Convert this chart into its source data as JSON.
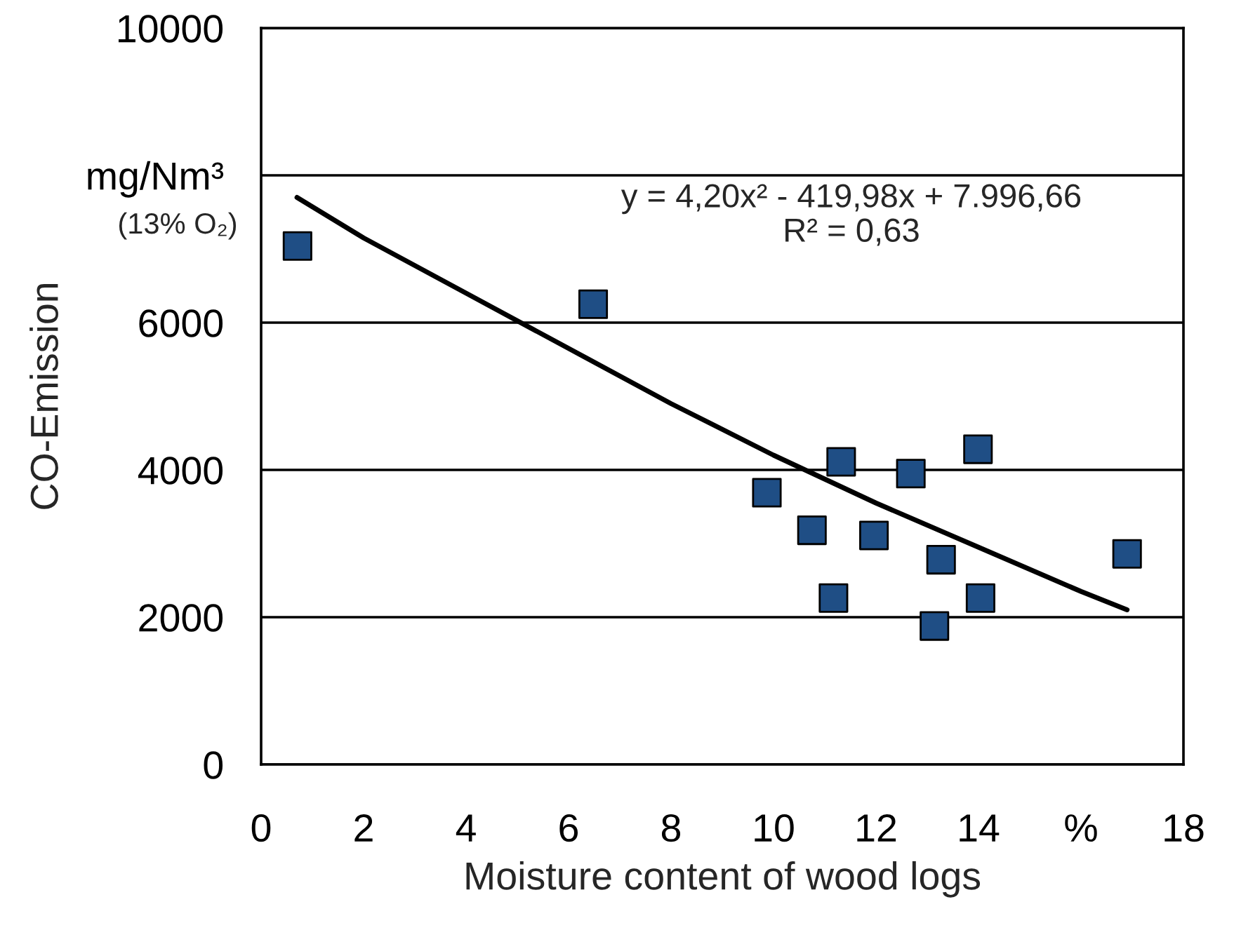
{
  "chart_data": {
    "type": "scatter",
    "xlabel": "Moisture content of wood logs",
    "ylabel": "CO-Emission",
    "annotations": [
      "(13% O₂)",
      "y = 4,20x² - 419,98x + 7.996,66\nR² = 0,63"
    ],
    "series": [
      {
        "color": "#1f4e85",
        "marker": "square",
        "x": [
          0.71,
          6.48,
          9.87,
          11.32,
          10.75,
          11.17,
          11.96,
          12.68,
          13.27,
          13.14,
          13.99,
          14.04,
          16.9
        ],
        "values": [
          7040,
          6250,
          3690,
          4110,
          3180,
          2260,
          3110,
          3950,
          2780,
          1880,
          4280,
          2260,
          2860
        ]
      },
      {
        "type": "line",
        "color": "#000000",
        "marker": "none",
        "x": [
          0.7,
          2,
          4,
          6,
          8,
          10,
          12,
          14,
          16,
          16.9
        ],
        "values": [
          7700,
          7150,
          6400,
          5650,
          4900,
          4200,
          3550,
          2950,
          2350,
          2100
        ]
      }
    ],
    "xlim": [
      0,
      18
    ],
    "xticks": [
      0,
      2,
      4,
      6,
      8,
      10,
      12,
      14,
      {
        "value": 16,
        "label": "%"
      },
      18
    ],
    "ylim": [
      0,
      10000
    ],
    "yticks": [
      0,
      2000,
      4000,
      6000,
      {
        "value": 8000,
        "label": "mg/Nm³"
      },
      10000
    ],
    "grid": "y",
    "legend": false
  }
}
